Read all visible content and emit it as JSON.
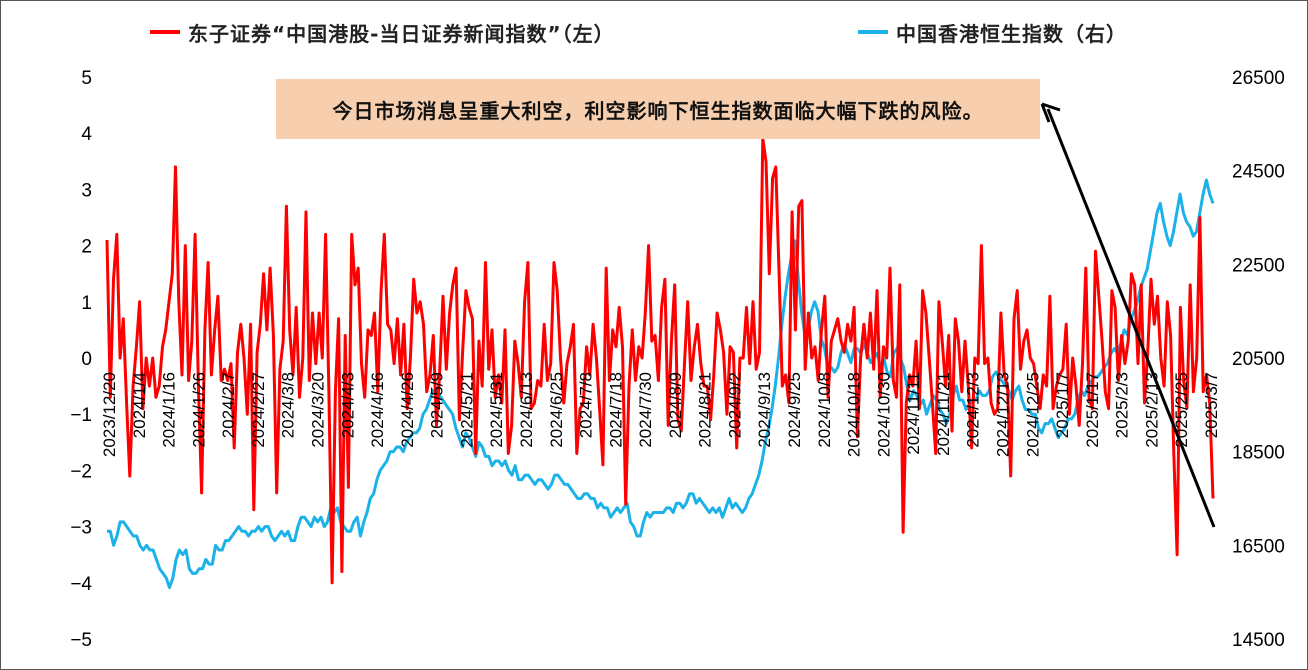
{
  "legend": {
    "left_label": "东子证券“中国港股-当日证券新闻指数”（左）",
    "right_label": "中国香港恒生指数（右）"
  },
  "annotation": "今日市场消息呈重大利空，利空影响下恒生指数面临大幅下跌的风险。",
  "chart_data": {
    "type": "line",
    "title": "",
    "xlabel": "",
    "ylabel": "",
    "x_ticks": [
      "2023/12/20",
      "2024/1/4",
      "2024/1/16",
      "2024/1/26",
      "2024/2/7",
      "2024/2/27",
      "2024/3/8",
      "2024/3/20",
      "2024/4/3",
      "2024/4/16",
      "2024/4/26",
      "2024/5/9",
      "2024/5/21",
      "2024/5/31",
      "2024/6/13",
      "2024/6/25",
      "2024/7/8",
      "2024/7/18",
      "2024/7/30",
      "2024/8/9",
      "2024/8/21",
      "2024/9/2",
      "2024/9/13",
      "2024/9/25",
      "2024/10/8",
      "2024/10/18",
      "2024/10/30",
      "2024/11/11",
      "2024/11/21",
      "2024/12/3",
      "2024/12/13",
      "2024/12/25",
      "2025/1/7",
      "2025/1/17",
      "2025/2/3",
      "2025/2/13",
      "2025/2/25",
      "2025/3/7"
    ],
    "ylim_left": [
      -5,
      5
    ],
    "yticks_left": [
      5,
      4,
      3,
      2,
      1,
      0,
      -1,
      -2,
      -3,
      -4,
      -5
    ],
    "ylim_right": [
      14500,
      26500
    ],
    "yticks_right": [
      26500,
      24500,
      22500,
      20500,
      18500,
      16500,
      14500
    ],
    "colors": {
      "news_index": "#ff0000",
      "hang_seng": "#1ab2e8"
    },
    "series": [
      {
        "name": "东子证券“中国港股-当日证券新闻指数”（左）",
        "axis": "left",
        "values": [
          2.1,
          -0.7,
          1.4,
          2.2,
          0.0,
          0.7,
          -0.8,
          -2.1,
          -0.5,
          0.2,
          1.0,
          -0.9,
          0.0,
          -0.5,
          0.0,
          -0.7,
          -0.5,
          0.2,
          0.5,
          1.0,
          1.5,
          3.4,
          1.0,
          -0.3,
          2.0,
          -0.4,
          0.3,
          2.2,
          -0.5,
          -2.4,
          0.5,
          1.7,
          -0.3,
          0.5,
          1.1,
          -0.4,
          -0.2,
          -0.4,
          -0.1,
          -1.6,
          0.1,
          0.6,
          0.0,
          -1.0,
          0.6,
          -2.7,
          0.1,
          0.6,
          1.5,
          0.5,
          1.6,
          0.4,
          -2.4,
          -0.2,
          0.3,
          2.7,
          0.5,
          -0.3,
          0.9,
          -0.7,
          0.0,
          2.6,
          -0.4,
          0.8,
          -0.1,
          0.8,
          0.0,
          2.2,
          -0.6,
          -4.0,
          -0.6,
          0.7,
          -3.8,
          0.4,
          -2.3,
          2.2,
          1.3,
          1.6,
          -0.1,
          -0.7,
          0.5,
          0.4,
          0.8,
          -0.6,
          1.2,
          2.2,
          0.6,
          0.5,
          -0.1,
          0.7,
          -0.3,
          0.6,
          -0.9,
          0.0,
          1.4,
          0.8,
          1.0,
          0.6,
          -0.6,
          -0.3,
          0.4,
          -1.2,
          -0.2,
          1.1,
          -0.2,
          0.8,
          1.3,
          1.6,
          -1.1,
          0.1,
          1.2,
          0.9,
          0.7,
          -1.7,
          0.3,
          -0.5,
          1.7,
          -0.2,
          0.5,
          -0.7,
          -0.3,
          -0.8,
          0.5,
          -1.7,
          -1.2,
          0.3,
          -0.1,
          -0.7,
          1.0,
          1.7,
          -0.9,
          -0.8,
          -0.4,
          -0.5,
          0.6,
          -0.4,
          -0.1,
          1.7,
          1.2,
          0.0,
          -0.8,
          -0.1,
          0.2,
          0.6,
          -1.7,
          -0.9,
          -0.8,
          0.2,
          -0.3,
          0.6,
          0.0,
          -0.9,
          -1.9,
          1.6,
          -0.4,
          0.5,
          0.2,
          0.9,
          0.2,
          -2.6,
          -0.5,
          0.5,
          -0.4,
          0.2,
          0.0,
          0.8,
          2.0,
          0.3,
          0.4,
          -0.4,
          0.9,
          1.4,
          -1.2,
          0.3,
          1.3,
          -1.1,
          -1.3,
          -0.1,
          1.0,
          -0.4,
          0.2,
          0.6,
          -0.1,
          -0.5,
          -0.5,
          -1.1,
          -0.3,
          0.8,
          0.5,
          0.1,
          -1.0,
          0.2,
          0.1,
          -1.6,
          0.0,
          0.0,
          0.9,
          -0.1,
          1.0,
          -0.2,
          0.1,
          3.9,
          3.5,
          1.5,
          3.2,
          3.4,
          1.5,
          -0.5,
          -0.3,
          -0.8,
          2.6,
          0.5,
          2.7,
          2.8,
          -0.2,
          0.8,
          0.0,
          0.2,
          -0.4,
          0.5,
          1.1,
          -0.7,
          0.3,
          0.5,
          0.7,
          0.3,
          0.1,
          0.6,
          0.3,
          0.9,
          -1.4,
          0.0,
          0.6,
          0.0,
          0.8,
          -0.2,
          1.2,
          -0.7,
          0.2,
          0.0,
          1.6,
          -0.4,
          -0.7,
          1.3,
          -3.1,
          -0.8,
          -0.3,
          -0.5,
          0.3,
          -0.9,
          1.2,
          0.8,
          0.0,
          -0.8,
          -1.7,
          1.0,
          0.3,
          -0.5,
          0.4,
          -1.3,
          0.7,
          0.3,
          -0.6,
          0.3,
          -0.5,
          -1.6,
          0.0,
          -0.1,
          2.0,
          -0.1,
          0.0,
          -0.8,
          -1.0,
          -0.9,
          0.8,
          -0.3,
          -0.5,
          -2.1,
          0.7,
          1.2,
          -0.2,
          0.3,
          0.5,
          0.0,
          -0.1,
          -0.5,
          -0.9,
          -0.3,
          -0.5,
          1.1,
          -0.9,
          -0.5,
          -0.3,
          -0.2,
          0.6,
          -1.0,
          0.0,
          -0.5,
          -1.2,
          -0.1,
          1.6,
          -0.7,
          -0.9,
          1.9,
          1.1,
          0.3,
          -0.6,
          -0.9,
          1.2,
          0.9,
          -0.4,
          0.4,
          -0.1,
          0.3,
          1.5,
          1.3,
          -0.1,
          1.3,
          -0.8,
          0.1,
          1.4,
          0.6,
          1.1,
          0.0,
          -0.5,
          1.0,
          0.4,
          -1.7,
          -3.5,
          0.9,
          -0.4,
          -0.9,
          1.3,
          -0.6,
          0.0,
          2.5,
          -0.6,
          -0.3,
          -0.8,
          -2.5
        ]
      },
      {
        "name": "中国香港恒生指数（右）",
        "axis": "right",
        "values": [
          16800,
          16800,
          16500,
          16700,
          17000,
          17000,
          16900,
          16800,
          16700,
          16700,
          16500,
          16400,
          16500,
          16400,
          16400,
          16200,
          16000,
          15900,
          15800,
          15600,
          15800,
          16200,
          16400,
          16300,
          16400,
          16000,
          15900,
          15900,
          16000,
          16000,
          16200,
          16100,
          16100,
          16500,
          16400,
          16400,
          16600,
          16600,
          16700,
          16800,
          16900,
          16800,
          16800,
          16700,
          16800,
          16800,
          16900,
          16800,
          16900,
          16900,
          16700,
          16600,
          16700,
          16800,
          16700,
          16800,
          16600,
          16600,
          16900,
          17100,
          17100,
          17000,
          16900,
          17100,
          17000,
          17100,
          16900,
          17000,
          17300,
          17200,
          17300,
          17000,
          16900,
          16800,
          16800,
          17000,
          17100,
          16700,
          17000,
          17200,
          17500,
          17600,
          17900,
          18100,
          18200,
          18300,
          18500,
          18500,
          18600,
          18600,
          18500,
          18700,
          18800,
          18900,
          18900,
          19000,
          19300,
          19400,
          19600,
          19800,
          19800,
          19700,
          19600,
          19500,
          19400,
          19300,
          19000,
          18800,
          18600,
          18900,
          18800,
          18600,
          18400,
          18700,
          18600,
          18400,
          18400,
          18200,
          18300,
          18300,
          18200,
          18300,
          18100,
          18000,
          18200,
          17900,
          17900,
          18000,
          18000,
          17900,
          17800,
          17900,
          17900,
          17800,
          17700,
          17800,
          18000,
          18000,
          17900,
          17800,
          17800,
          17700,
          17600,
          17500,
          17500,
          17600,
          17600,
          17500,
          17500,
          17300,
          17400,
          17300,
          17300,
          17100,
          17200,
          17300,
          17200,
          17300,
          17400,
          17000,
          16900,
          16700,
          16700,
          17000,
          17200,
          17100,
          17200,
          17200,
          17200,
          17200,
          17300,
          17300,
          17200,
          17400,
          17400,
          17300,
          17400,
          17600,
          17600,
          17400,
          17500,
          17400,
          17300,
          17200,
          17300,
          17200,
          17300,
          17100,
          17300,
          17500,
          17300,
          17400,
          17300,
          17200,
          17300,
          17500,
          17600,
          17800,
          18000,
          18300,
          18700,
          19000,
          19400,
          19900,
          20500,
          21200,
          21800,
          22300,
          22700,
          23000,
          22200,
          21500,
          21000,
          21100,
          21500,
          21700,
          21500,
          20900,
          20700,
          20300,
          20300,
          20200,
          20300,
          20600,
          20800,
          20600,
          20400,
          20700,
          20700,
          20600,
          20800,
          20600,
          20400,
          20500,
          20600,
          20300,
          20500,
          20200,
          20100,
          20600,
          20700,
          20500,
          20300,
          19900,
          19600,
          19800,
          19700,
          19500,
          19600,
          19300,
          19500,
          19700,
          19600,
          19400,
          19300,
          19100,
          19300,
          19700,
          19900,
          19600,
          19600,
          19400,
          19500,
          19600,
          19600,
          19800,
          19700,
          19700,
          19800,
          20100,
          20200,
          20100,
          20000,
          19900,
          19800,
          19600,
          19800,
          19900,
          19600,
          19400,
          19400,
          19300,
          19300,
          19000,
          18900,
          19100,
          19100,
          19200,
          19000,
          18800,
          18900,
          19000,
          19200,
          19200,
          19300,
          19600,
          19800,
          19700,
          19900,
          20000,
          20100,
          20100,
          20200,
          20300,
          20400,
          20600,
          20700,
          20600,
          20800,
          21100,
          21000,
          21300,
          21500,
          21700,
          22000,
          22200,
          22400,
          22800,
          23200,
          23600,
          23800,
          23400,
          23100,
          22900,
          23200,
          23600,
          24000,
          23600,
          23400,
          23300,
          23100,
          23200,
          23600,
          24000,
          24300,
          24000,
          23800
        ]
      }
    ]
  }
}
